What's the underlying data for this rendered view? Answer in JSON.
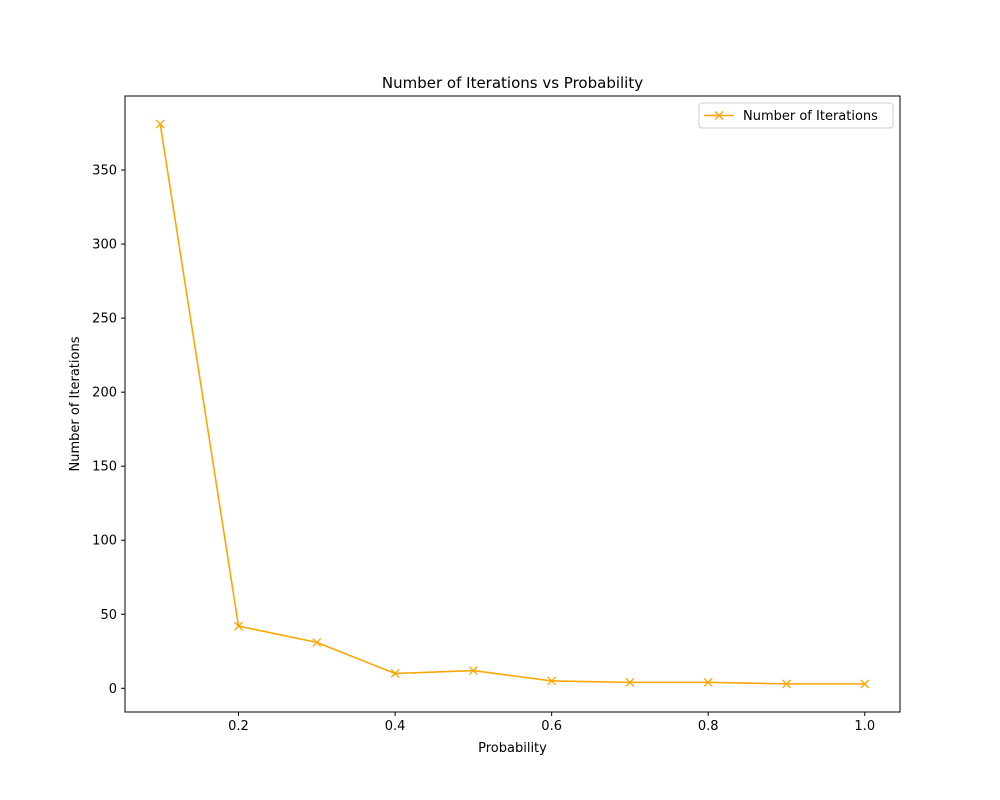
{
  "chart_data": {
    "type": "line",
    "title": "Number of Iterations vs Probability",
    "xlabel": "Probability",
    "ylabel": "Number of Iterations",
    "xlim": [
      0.055,
      1.045
    ],
    "ylim": [
      -16,
      400
    ],
    "xticks": [
      0.2,
      0.4,
      0.6,
      0.8,
      1.0
    ],
    "xtick_labels": [
      "0.2",
      "0.4",
      "0.6",
      "0.8",
      "1.0"
    ],
    "yticks": [
      0,
      50,
      100,
      150,
      200,
      250,
      300,
      350
    ],
    "ytick_labels": [
      "0",
      "50",
      "100",
      "150",
      "200",
      "250",
      "300",
      "350"
    ],
    "grid": false,
    "legend_position": "top-right",
    "series": [
      {
        "name": "Number of Iterations",
        "color": "#ffa500",
        "marker": "x",
        "x": [
          0.1,
          0.2,
          0.3,
          0.4,
          0.5,
          0.6,
          0.7,
          0.8,
          0.9,
          1.0
        ],
        "y": [
          381,
          42,
          31,
          10,
          12,
          5,
          4,
          4,
          3,
          3
        ]
      }
    ]
  }
}
